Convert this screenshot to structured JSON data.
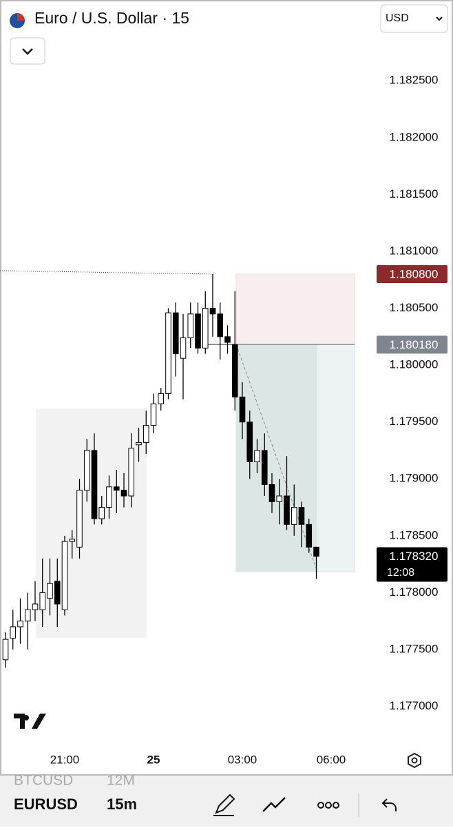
{
  "header": {
    "title": "Euro / U.S. Dollar · 15",
    "currency": "USD"
  },
  "chart_data": {
    "type": "candlestick",
    "categories": [
      null,
      null,
      null,
      null,
      null,
      null,
      null,
      null,
      "21:00",
      null,
      null,
      null,
      null,
      null,
      null,
      null,
      null,
      null,
      null,
      null,
      "25",
      null,
      null,
      null,
      null,
      null,
      null,
      null,
      null,
      null,
      null,
      null,
      "03:00",
      null,
      null,
      null,
      null,
      null,
      null,
      null,
      null,
      null,
      null,
      null,
      "06:00"
    ],
    "open": [
      1.17741,
      1.1776,
      1.1777,
      1.17775,
      1.17785,
      1.17785,
      1.17795,
      1.1781,
      1.17785,
      1.17845,
      1.1784,
      1.1789,
      1.17925,
      1.17865,
      1.17875,
      1.17893,
      1.1789,
      1.17885,
      1.1793,
      1.17932,
      1.17947,
      1.17966,
      1.17975,
      1.18046,
      1.18006,
      1.18024,
      1.18045,
      1.18015,
      1.1805,
      1.18045,
      1.18025,
      1.18018,
      1.17972,
      1.1795,
      1.17915,
      1.17925,
      1.17895,
      1.1788,
      1.17885,
      1.1786,
      1.17875,
      1.1786,
      1.1784,
      null,
      null
    ],
    "high": [
      1.17765,
      1.17785,
      1.17795,
      1.178,
      1.1781,
      1.1783,
      1.1783,
      1.1783,
      1.1785,
      1.17855,
      1.179,
      1.17935,
      1.1794,
      1.17885,
      1.17903,
      1.17908,
      1.17905,
      1.1794,
      1.17945,
      1.1796,
      1.17975,
      1.1798,
      1.1805,
      1.18055,
      1.18045,
      1.18055,
      1.18055,
      1.18065,
      1.1808,
      1.18055,
      1.18035,
      1.18065,
      1.17985,
      1.1796,
      1.17935,
      1.1794,
      1.17905,
      1.179,
      1.1792,
      1.17895,
      1.1788,
      1.17865,
      1.1784,
      null,
      null
    ],
    "low": [
      1.17734,
      1.1775,
      1.17755,
      1.1775,
      1.17775,
      1.1777,
      1.1778,
      1.1777,
      1.1778,
      1.1783,
      1.1783,
      1.1788,
      1.1786,
      1.1786,
      1.17865,
      1.1787,
      1.17875,
      1.17875,
      1.17915,
      1.17922,
      1.1794,
      1.1796,
      1.1797,
      1.1799,
      1.1797,
      1.18015,
      1.1801,
      1.1801,
      1.18025,
      1.18005,
      1.1801,
      1.1796,
      1.17935,
      1.179,
      1.17905,
      1.17885,
      1.1787,
      1.1786,
      1.17855,
      1.1785,
      1.1784,
      1.17835,
      1.17812,
      null,
      null
    ],
    "close": [
      1.17759,
      1.1777,
      1.17775,
      1.17785,
      1.1779,
      1.178,
      1.17808,
      1.1779,
      1.17845,
      1.17847,
      1.1789,
      1.17925,
      1.17865,
      1.17875,
      1.17893,
      1.1789,
      1.17885,
      1.17927,
      1.17932,
      1.17947,
      1.17966,
      1.17975,
      1.18046,
      1.1801,
      1.18024,
      1.18045,
      1.18015,
      1.1805,
      1.18045,
      1.18025,
      1.1802,
      1.17972,
      1.1795,
      1.17915,
      1.17925,
      1.17895,
      1.1788,
      1.17885,
      1.1786,
      1.17875,
      1.1786,
      1.1784,
      1.17832,
      null,
      null
    ],
    "colors": {
      "up": "#ffffff",
      "down": "#000000"
    },
    "ylim": [
      1.17664,
      1.18321
    ],
    "yticks": [
      {
        "value": 1.177,
        "label": "1.177000"
      },
      {
        "value": 1.1775,
        "label": "1.177500"
      },
      {
        "value": 1.178,
        "label": "1.178000"
      },
      {
        "value": 1.1785,
        "label": "1.178500"
      },
      {
        "value": 1.179,
        "label": "1.179000"
      },
      {
        "value": 1.1795,
        "label": "1.179500"
      },
      {
        "value": 1.18,
        "label": "1.180000"
      },
      {
        "value": 1.1805,
        "label": "1.180500"
      },
      {
        "value": 1.181,
        "label": "1.181000"
      },
      {
        "value": 1.1815,
        "label": "1.181500"
      },
      {
        "value": 1.182,
        "label": "1.182000"
      },
      {
        "value": 1.1825,
        "label": "1.182500"
      }
    ],
    "grid": false,
    "price_tags": [
      {
        "value": 1.1808,
        "label": "1.180800",
        "color": "#8b2a2a"
      },
      {
        "value": 1.18018,
        "label": "1.180180",
        "color": "#7f858f"
      },
      {
        "value": 1.17832,
        "label": "1.178320",
        "color": "#000000"
      }
    ],
    "countdown": "12:08"
  },
  "toolbar": {
    "symbols": [
      {
        "symbol": "BTCUSD",
        "interval": "12M"
      },
      {
        "symbol": "EURUSD",
        "interval": "15m"
      }
    ]
  }
}
